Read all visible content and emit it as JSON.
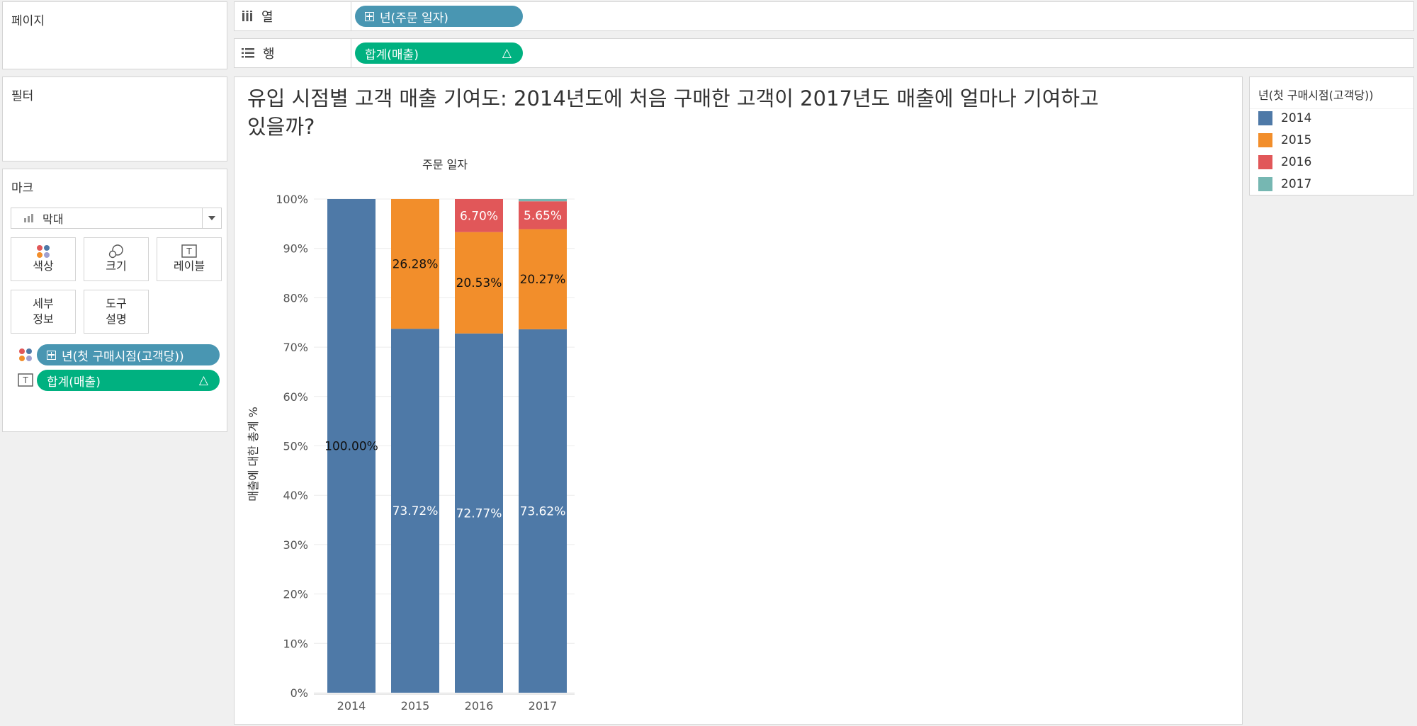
{
  "pages_label": "페이지",
  "filters_label": "필터",
  "marks": {
    "title": "마크",
    "type_label": "막대",
    "buttons": {
      "color": "색상",
      "size": "크기",
      "label": "레이블",
      "detail_l1": "세부",
      "detail_l2": "정보",
      "tooltip_l1": "도구",
      "tooltip_l2": "설명"
    },
    "pills": {
      "color_field": "년(첫 구매시점(고객당))",
      "label_field": "합계(매출)",
      "delta": "△"
    }
  },
  "shelves": {
    "columns_label": "열",
    "columns_pill": "년(주문 일자)",
    "rows_label": "행",
    "rows_pill": "합계(매출)",
    "rows_delta": "△"
  },
  "view": {
    "title_line1": "유입 시점별 고객 매출 기여도: 2014년도에 처음 구매한 고객이 2017년도 매출에 얼마나 기여하고",
    "title_line2": "있을까?"
  },
  "legend": {
    "title": "년(첫 구매시점(고객당))",
    "items": [
      {
        "label": "2014",
        "color": "#4e79a7"
      },
      {
        "label": "2015",
        "color": "#f28e2b"
      },
      {
        "label": "2016",
        "color": "#e15759"
      },
      {
        "label": "2017",
        "color": "#76b7b2"
      }
    ]
  },
  "chart_data": {
    "type": "bar",
    "stacked": true,
    "title": "",
    "column_header": "주문 일자",
    "xlabel": "",
    "ylabel": "매출에 대한 총계 %",
    "ylim": [
      0,
      100
    ],
    "y_ticks": [
      "0%",
      "10%",
      "20%",
      "30%",
      "40%",
      "50%",
      "60%",
      "70%",
      "80%",
      "90%",
      "100%"
    ],
    "categories": [
      "2014",
      "2015",
      "2016",
      "2017"
    ],
    "series": [
      {
        "name": "2014",
        "color": "#4e79a7",
        "values": [
          100.0,
          73.72,
          72.77,
          73.62
        ],
        "labels": [
          "100.00%",
          "73.72%",
          "72.77%",
          "73.62%"
        ]
      },
      {
        "name": "2015",
        "color": "#f28e2b",
        "values": [
          0,
          26.28,
          20.53,
          20.27
        ],
        "labels": [
          "",
          "26.28%",
          "20.53%",
          "20.27%"
        ]
      },
      {
        "name": "2016",
        "color": "#e15759",
        "values": [
          0,
          0,
          6.7,
          5.65
        ],
        "labels": [
          "",
          "",
          "6.70%",
          "5.65%"
        ]
      },
      {
        "name": "2017",
        "color": "#76b7b2",
        "values": [
          0,
          0,
          0,
          0.46
        ],
        "labels": [
          "",
          "",
          "",
          ""
        ]
      }
    ],
    "grid": true,
    "legend_position": "right"
  }
}
